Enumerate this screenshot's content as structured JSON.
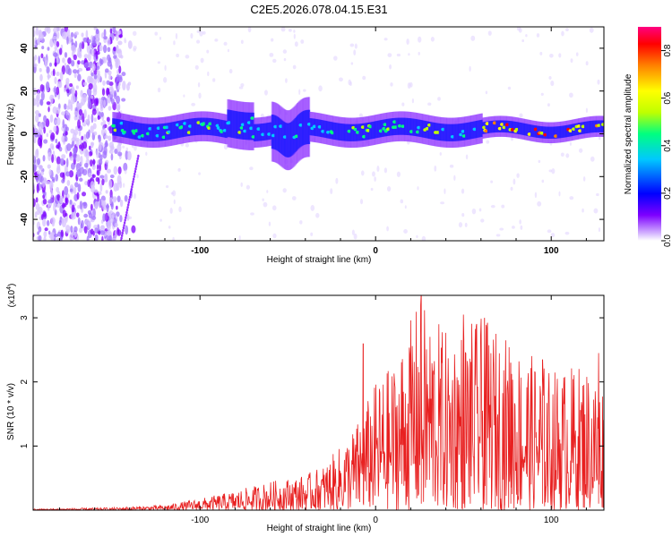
{
  "title": "C2E5.2026.078.04.15.E31",
  "chart_data": [
    {
      "type": "heatmap",
      "xlabel": "Height of straight line (km)",
      "ylabel": "Frequency (Hz)",
      "xlim": [
        -195,
        130
      ],
      "ylim": [
        -50,
        50
      ],
      "x_ticks": [
        -100,
        0,
        100
      ],
      "y_ticks": [
        -40,
        -20,
        0,
        20,
        40
      ],
      "grid": false,
      "colorbar": {
        "label": "Normalized spectral amplitude",
        "range": [
          0,
          0.9
        ],
        "ticks": [
          "0.0",
          "0.2",
          "0.4",
          "0.6",
          "0.8"
        ],
        "colors": [
          "#ffffff",
          "#d9bfff",
          "#7d00ff",
          "#0000ff",
          "#00c8ff",
          "#00ff80",
          "#bfff00",
          "#ffff00",
          "#ff8000",
          "#ff0000",
          "#ff0080"
        ]
      },
      "description_values": {
        "noise_region_x": [
          -195,
          -145
        ],
        "band_center_hz": 2,
        "band_halfwidth_hz": 5,
        "dip_x": -50,
        "dip_hz": -16,
        "high_amplitude_x": [
          60,
          130
        ]
      }
    },
    {
      "type": "line",
      "xlabel": "Height of straight line (km)",
      "ylabel": "SNR (10 * v/v)",
      "y_multiplier": "(x10",
      "y_multiplier_exp": "4",
      "y_multiplier_close": ")",
      "xlim": [
        -195,
        130
      ],
      "ylim": [
        0,
        3.35
      ],
      "x_ticks": [
        -100,
        0,
        100
      ],
      "y_ticks": [
        1,
        2,
        3
      ],
      "line_color": "#e82020",
      "envelope": [
        {
          "x": -195,
          "y": 0.02
        },
        {
          "x": -150,
          "y": 0.04
        },
        {
          "x": -120,
          "y": 0.08
        },
        {
          "x": -100,
          "y": 0.18
        },
        {
          "x": -80,
          "y": 0.3
        },
        {
          "x": -60,
          "y": 0.45
        },
        {
          "x": -40,
          "y": 0.55
        },
        {
          "x": -30,
          "y": 0.7
        },
        {
          "x": -20,
          "y": 1.0
        },
        {
          "x": -10,
          "y": 1.4
        },
        {
          "x": 0,
          "y": 2.0
        },
        {
          "x": 10,
          "y": 2.3
        },
        {
          "x": 25,
          "y": 3.3
        },
        {
          "x": 40,
          "y": 2.8
        },
        {
          "x": 60,
          "y": 3.0
        },
        {
          "x": 80,
          "y": 2.6
        },
        {
          "x": 100,
          "y": 2.2
        },
        {
          "x": 120,
          "y": 2.3
        },
        {
          "x": 130,
          "y": 2.0
        }
      ],
      "peaks": [
        {
          "x": -7,
          "y": 2.6
        },
        {
          "x": 26,
          "y": 3.35
        },
        {
          "x": 50,
          "y": 3.05
        },
        {
          "x": 62,
          "y": 3.0
        },
        {
          "x": 77,
          "y": 2.3
        },
        {
          "x": 95,
          "y": 2.35
        },
        {
          "x": 127,
          "y": 2.45
        }
      ]
    }
  ]
}
